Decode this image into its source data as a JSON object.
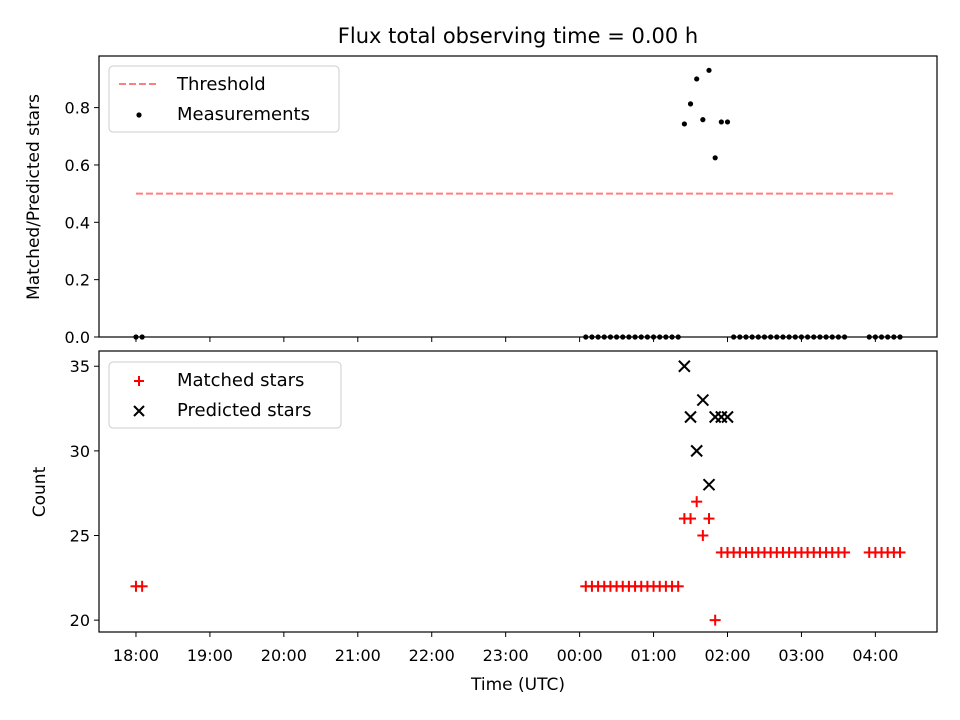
{
  "title": "Flux total observing time = 0.00 h",
  "chart_data": [
    {
      "type": "scatter",
      "ylabel": "Matched/Predicted stars",
      "ylim": [
        0,
        0.98
      ],
      "yticks": [
        0.0,
        0.2,
        0.4,
        0.6,
        0.8
      ],
      "ytick_labels": [
        "0.0",
        "0.2",
        "0.4",
        "0.6",
        "0.8"
      ],
      "legend": [
        "Threshold",
        "Measurements"
      ],
      "legend_position": "top-left",
      "threshold": {
        "name": "Threshold",
        "value": 0.5,
        "x_start": "18:00",
        "x_end": "04:15",
        "color": "#ff7f7f",
        "style": "dashed"
      },
      "measurements": {
        "name": "Measurements",
        "color": "#000000",
        "x": [
          "18:00",
          "18:05",
          "00:05",
          "00:10",
          "00:15",
          "00:20",
          "00:25",
          "00:30",
          "00:35",
          "00:40",
          "00:45",
          "00:50",
          "00:55",
          "01:00",
          "01:05",
          "01:10",
          "01:15",
          "01:20",
          "01:25",
          "01:30",
          "01:35",
          "01:40",
          "01:45",
          "01:50",
          "01:55",
          "02:00",
          "02:05",
          "02:10",
          "02:15",
          "02:20",
          "02:25",
          "02:30",
          "02:35",
          "02:40",
          "02:45",
          "02:50",
          "02:55",
          "03:00",
          "03:05",
          "03:10",
          "03:15",
          "03:20",
          "03:25",
          "03:30",
          "03:35",
          "03:55",
          "04:00",
          "04:05",
          "04:10",
          "04:15",
          "04:20"
        ],
        "y": [
          0,
          0,
          0,
          0,
          0,
          0,
          0,
          0,
          0,
          0,
          0,
          0,
          0,
          0,
          0,
          0,
          0,
          0,
          0.743,
          0.813,
          0.9,
          0.758,
          0.93,
          0.625,
          0.75,
          0.75,
          0,
          0,
          0,
          0,
          0,
          0,
          0,
          0,
          0,
          0,
          0,
          0,
          0,
          0,
          0,
          0,
          0,
          0,
          0,
          0,
          0,
          0,
          0,
          0,
          0
        ]
      }
    },
    {
      "type": "scatter",
      "xlabel": "Time (UTC)",
      "ylabel": "Count",
      "ylim": [
        19.3,
        35.9
      ],
      "yticks": [
        20,
        25,
        30,
        35
      ],
      "ytick_labels": [
        "20",
        "25",
        "30",
        "35"
      ],
      "xlim": [
        "17:30",
        "04:50"
      ],
      "xticks": [
        "18:00",
        "19:00",
        "20:00",
        "21:00",
        "22:00",
        "23:00",
        "00:00",
        "01:00",
        "02:00",
        "03:00",
        "04:00"
      ],
      "legend": [
        "Matched stars",
        "Predicted stars"
      ],
      "legend_position": "top-left",
      "matched": {
        "name": "Matched stars",
        "color": "#ff0000",
        "x": [
          "18:00",
          "18:05",
          "00:05",
          "00:10",
          "00:15",
          "00:20",
          "00:25",
          "00:30",
          "00:35",
          "00:40",
          "00:45",
          "00:50",
          "00:55",
          "01:00",
          "01:05",
          "01:10",
          "01:15",
          "01:20",
          "01:25",
          "01:30",
          "01:35",
          "01:40",
          "01:45",
          "01:50",
          "01:55",
          "02:00",
          "02:05",
          "02:10",
          "02:15",
          "02:20",
          "02:25",
          "02:30",
          "02:35",
          "02:40",
          "02:45",
          "02:50",
          "02:55",
          "03:00",
          "03:05",
          "03:10",
          "03:15",
          "03:20",
          "03:25",
          "03:30",
          "03:35",
          "03:55",
          "04:00",
          "04:05",
          "04:10",
          "04:15",
          "04:20"
        ],
        "y": [
          22,
          22,
          22,
          22,
          22,
          22,
          22,
          22,
          22,
          22,
          22,
          22,
          22,
          22,
          22,
          22,
          22,
          22,
          26,
          26,
          27,
          25,
          26,
          20,
          24,
          24,
          24,
          24,
          24,
          24,
          24,
          24,
          24,
          24,
          24,
          24,
          24,
          24,
          24,
          24,
          24,
          24,
          24,
          24,
          24,
          24,
          24,
          24,
          24,
          24,
          24
        ]
      },
      "predicted": {
        "name": "Predicted stars",
        "color": "#000000",
        "x": [
          "01:25",
          "01:30",
          "01:35",
          "01:40",
          "01:45",
          "01:50",
          "01:55",
          "02:00"
        ],
        "y": [
          35,
          32,
          30,
          33,
          28,
          32,
          32,
          32
        ]
      }
    }
  ]
}
